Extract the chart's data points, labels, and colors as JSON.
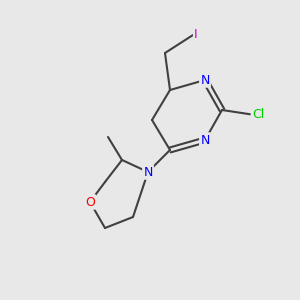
{
  "bg_color": "#e8e8e8",
  "bond_color": "#404040",
  "bond_width": 1.5,
  "atom_colors": {
    "N": "#0000ff",
    "O": "#ff0000",
    "Cl": "#00cc00",
    "I": "#cc00cc",
    "C": "#000000"
  },
  "font_size": 9,
  "font_size_small": 8
}
